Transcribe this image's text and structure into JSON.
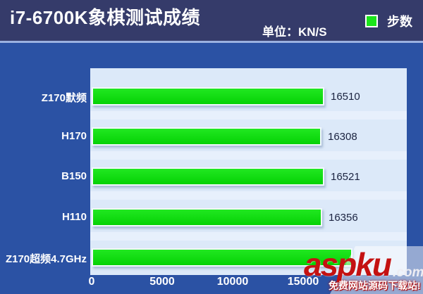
{
  "header": {
    "title": "i7-6700K象棋测试成绩",
    "unit_label": "单位：KN/S",
    "legend_label": "步数",
    "legend_color": "#1be41b"
  },
  "chart_data": {
    "type": "bar",
    "orientation": "horizontal",
    "title": "i7-6700K象棋测试成绩",
    "unit": "KN/S",
    "legend": [
      "步数"
    ],
    "legend_position": "top-right",
    "categories": [
      "Z170默频",
      "H170",
      "B150",
      "H110",
      "Z170超频4.7GHz"
    ],
    "values": [
      16510,
      16308,
      16521,
      16356,
      18500
    ],
    "value_labels": [
      "16510",
      "16308",
      "16521",
      "16356",
      ""
    ],
    "last_value_note": "bar end and data label hidden behind watermark; 18500 estimated from bar length",
    "x_ticks": [
      0,
      5000,
      10000,
      15000
    ],
    "x_tick_labels": [
      "0",
      "5000",
      "10000",
      "15000"
    ],
    "xlim": [
      0,
      22450
    ],
    "grid": false,
    "bar_color": "#0ddd0d",
    "plot_background": "#dce9f9",
    "page_background": "#2b52a4",
    "header_background": "#353b6a"
  },
  "watermark": {
    "brand": "aspku",
    "brand_suffix": ".com",
    "tagline": "免费网站源码下载站!"
  }
}
